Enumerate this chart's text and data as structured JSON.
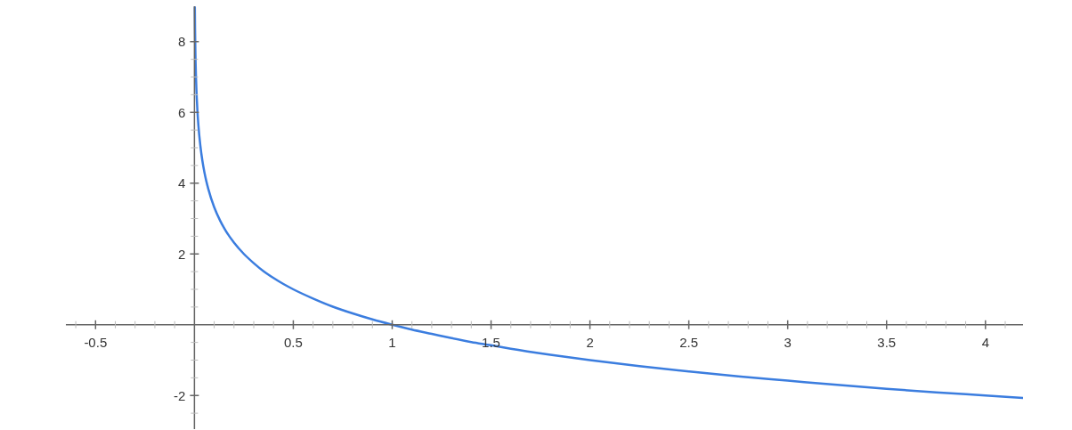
{
  "chart_data": {
    "type": "line",
    "x": [
      0.002,
      0.003,
      0.005,
      0.008,
      0.012,
      0.015,
      0.02,
      0.03,
      0.04,
      0.05,
      0.06,
      0.07,
      0.1,
      0.13,
      0.16,
      0.2,
      0.25,
      0.3,
      0.35,
      0.4,
      0.45,
      0.5,
      0.6,
      0.7,
      0.8,
      0.9,
      1.0,
      1.1,
      1.2,
      1.3,
      1.4,
      1.5,
      1.6,
      1.8,
      2.0,
      2.25,
      2.5,
      2.75,
      3.0,
      3.25,
      3.5,
      3.75,
      4.0,
      4.19
    ],
    "series": [
      {
        "color": "#3b7ddf",
        "values": [
          8.97,
          8.38,
          7.64,
          6.97,
          6.38,
          6.06,
          5.64,
          5.06,
          4.64,
          4.32,
          4.06,
          3.84,
          3.32,
          2.94,
          2.64,
          2.32,
          2.0,
          1.74,
          1.51,
          1.32,
          1.15,
          1.0,
          0.74,
          0.51,
          0.32,
          0.15,
          0.0,
          -0.14,
          -0.26,
          -0.38,
          -0.49,
          -0.58,
          -0.68,
          -0.85,
          -1.0,
          -1.17,
          -1.32,
          -1.46,
          -1.58,
          -1.7,
          -1.81,
          -1.91,
          -2.0,
          -2.07
        ]
      }
    ],
    "xlim": [
      -0.65,
      4.19
    ],
    "ylim": [
      -2.95,
      9
    ],
    "xticks": [
      {
        "value": -0.6,
        "label": null
      },
      -0.5,
      {
        "value": -0.4,
        "label": null
      },
      {
        "value": -0.3,
        "label": null
      },
      {
        "value": -0.2,
        "label": null
      },
      {
        "value": -0.1,
        "label": null
      },
      {
        "value": 0.1,
        "label": null
      },
      {
        "value": 0.2,
        "label": null
      },
      {
        "value": 0.3,
        "label": null
      },
      {
        "value": 0.4,
        "label": null
      },
      0.5,
      {
        "value": 0.6,
        "label": null
      },
      {
        "value": 0.7,
        "label": null
      },
      {
        "value": 0.8,
        "label": null
      },
      {
        "value": 0.9,
        "label": null
      },
      1,
      {
        "value": 1.1,
        "label": null
      },
      {
        "value": 1.2,
        "label": null
      },
      {
        "value": 1.3,
        "label": null
      },
      {
        "value": 1.4,
        "label": null
      },
      1.5,
      {
        "value": 1.6,
        "label": null
      },
      {
        "value": 1.7,
        "label": null
      },
      {
        "value": 1.8,
        "label": null
      },
      {
        "value": 1.9,
        "label": null
      },
      2,
      {
        "value": 2.1,
        "label": null
      },
      {
        "value": 2.2,
        "label": null
      },
      {
        "value": 2.3,
        "label": null
      },
      {
        "value": 2.4,
        "label": null
      },
      2.5,
      {
        "value": 2.6,
        "label": null
      },
      {
        "value": 2.7,
        "label": null
      },
      {
        "value": 2.8,
        "label": null
      },
      {
        "value": 2.9,
        "label": null
      },
      3,
      {
        "value": 3.1,
        "label": null
      },
      {
        "value": 3.2,
        "label": null
      },
      {
        "value": 3.3,
        "label": null
      },
      {
        "value": 3.4,
        "label": null
      },
      3.5,
      {
        "value": 3.6,
        "label": null
      },
      {
        "value": 3.7,
        "label": null
      },
      {
        "value": 3.8,
        "label": null
      },
      {
        "value": 3.9,
        "label": null
      },
      4,
      {
        "value": 4.1,
        "label": null
      }
    ],
    "yticks": [
      {
        "value": -2.5,
        "label": null
      },
      -2,
      {
        "value": -1.5,
        "label": null
      },
      {
        "value": -1,
        "label": null
      },
      {
        "value": -0.5,
        "label": null
      },
      {
        "value": 0.5,
        "label": null
      },
      {
        "value": 1,
        "label": null
      },
      {
        "value": 1.5,
        "label": null
      },
      2,
      {
        "value": 2.5,
        "label": null
      },
      {
        "value": 3,
        "label": null
      },
      {
        "value": 3.5,
        "label": null
      },
      4,
      {
        "value": 4.5,
        "label": null
      },
      {
        "value": 5,
        "label": null
      },
      {
        "value": 5.5,
        "label": null
      },
      6,
      {
        "value": 6.5,
        "label": null
      },
      {
        "value": 7,
        "label": null
      },
      {
        "value": 7.5,
        "label": null
      },
      8
    ]
  }
}
